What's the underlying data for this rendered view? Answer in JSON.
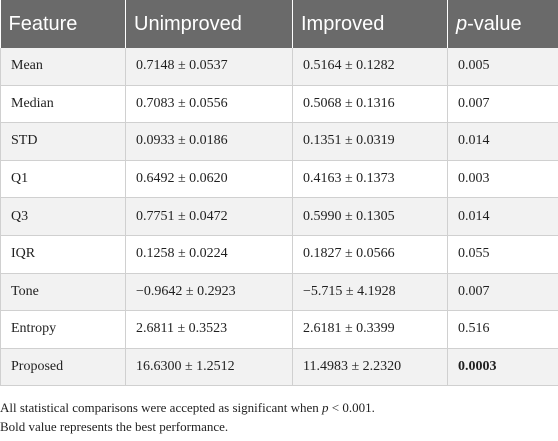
{
  "table": {
    "headers": {
      "feature": "Feature",
      "unimproved": "Unimproved",
      "improved": "Improved",
      "pvalue_italic": "p",
      "pvalue_rest": "-value"
    },
    "rows": [
      {
        "feature": "Mean",
        "unimproved": "0.7148 ± 0.0537",
        "improved": "0.5164 ± 0.1282",
        "pvalue": "0.005"
      },
      {
        "feature": "Median",
        "unimproved": "0.7083 ± 0.0556",
        "improved": "0.5068 ± 0.1316",
        "pvalue": "0.007"
      },
      {
        "feature": "STD",
        "unimproved": "0.0933 ± 0.0186",
        "improved": "0.1351 ± 0.0319",
        "pvalue": "0.014"
      },
      {
        "feature": "Q1",
        "unimproved": "0.6492 ± 0.0620",
        "improved": "0.4163 ± 0.1373",
        "pvalue": "0.003"
      },
      {
        "feature": "Q3",
        "unimproved": "0.7751 ± 0.0472",
        "improved": "0.5990 ± 0.1305",
        "pvalue": "0.014"
      },
      {
        "feature": "IQR",
        "unimproved": "0.1258 ± 0.0224",
        "improved": "0.1827 ± 0.0566",
        "pvalue": "0.055"
      },
      {
        "feature": "Tone",
        "unimproved": "−0.9642 ± 0.2923",
        "improved": "−5.715 ± 4.1928",
        "pvalue": "0.007"
      },
      {
        "feature": "Entropy",
        "unimproved": "2.6811 ± 0.3523",
        "improved": "2.6181 ± 0.3399",
        "pvalue": "0.516"
      },
      {
        "feature": "Proposed",
        "unimproved": "16.6300 ± 1.2512",
        "improved": "11.4983 ± 2.2320",
        "pvalue": "0.0003"
      }
    ]
  },
  "notes": {
    "line1_prefix": "All statistical comparisons were accepted as significant when ",
    "line1_p": "p",
    "line1_suffix": " < 0.001.",
    "line2": "Bold value represents the best performance."
  },
  "colors": {
    "header_bg": "#6a6a6a",
    "stripe_bg": "#f2f2f2"
  }
}
